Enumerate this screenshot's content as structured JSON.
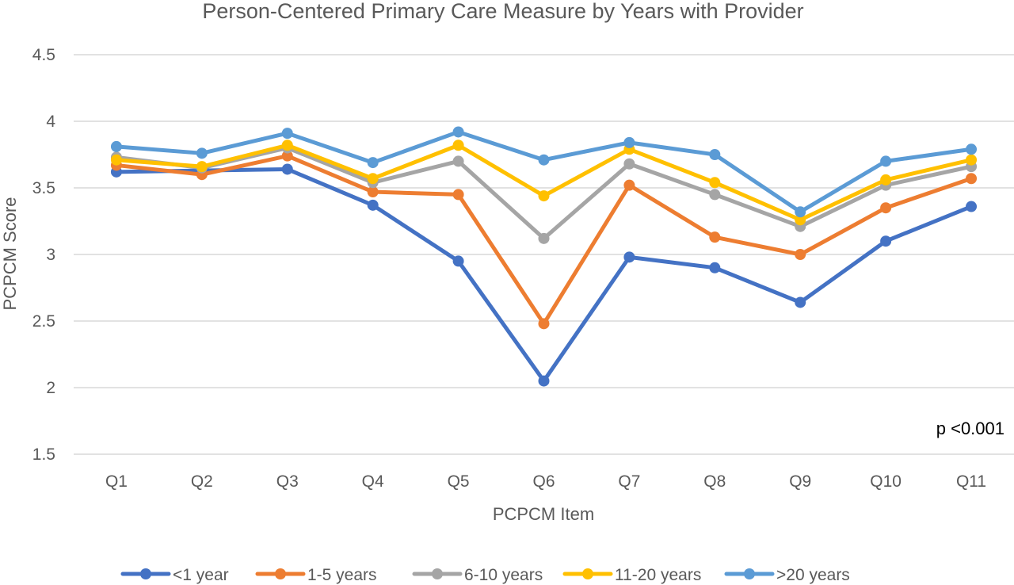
{
  "chart_data": {
    "type": "line",
    "title": "Person-Centered Primary Care Measure by Years with Provider",
    "xlabel": "PCPCM Item",
    "ylabel": "PCPCM Score",
    "categories": [
      "Q1",
      "Q2",
      "Q3",
      "Q4",
      "Q5",
      "Q6",
      "Q7",
      "Q8",
      "Q9",
      "Q10",
      "Q11"
    ],
    "ylim": [
      1.5,
      4.5
    ],
    "yticks": [
      "1.5",
      "2",
      "2.5",
      "3",
      "3.5",
      "4",
      "4.5"
    ],
    "ytick_values": [
      1.5,
      2,
      2.5,
      3,
      3.5,
      4,
      4.5
    ],
    "grid": true,
    "legend_position": "bottom",
    "annotation": "p <0.001",
    "series": [
      {
        "name": "<1 year",
        "color": "#4472c4",
        "values": [
          3.62,
          3.63,
          3.64,
          3.37,
          2.95,
          2.05,
          2.98,
          2.9,
          2.64,
          3.1,
          3.36
        ]
      },
      {
        "name": "1-5 years",
        "color": "#ed7d31",
        "values": [
          3.67,
          3.6,
          3.74,
          3.47,
          3.45,
          2.48,
          3.52,
          3.13,
          3.0,
          3.35,
          3.57
        ]
      },
      {
        "name": "6-10 years",
        "color": "#a5a5a5",
        "values": [
          3.73,
          3.65,
          3.8,
          3.54,
          3.7,
          3.12,
          3.68,
          3.45,
          3.21,
          3.52,
          3.66
        ]
      },
      {
        "name": "11-20 years",
        "color": "#ffc000",
        "values": [
          3.71,
          3.66,
          3.82,
          3.57,
          3.82,
          3.44,
          3.79,
          3.54,
          3.26,
          3.56,
          3.71
        ]
      },
      {
        "name": ">20 years",
        "color": "#5b9bd5",
        "values": [
          3.81,
          3.76,
          3.91,
          3.69,
          3.92,
          3.71,
          3.84,
          3.75,
          3.32,
          3.7,
          3.79
        ]
      }
    ]
  }
}
